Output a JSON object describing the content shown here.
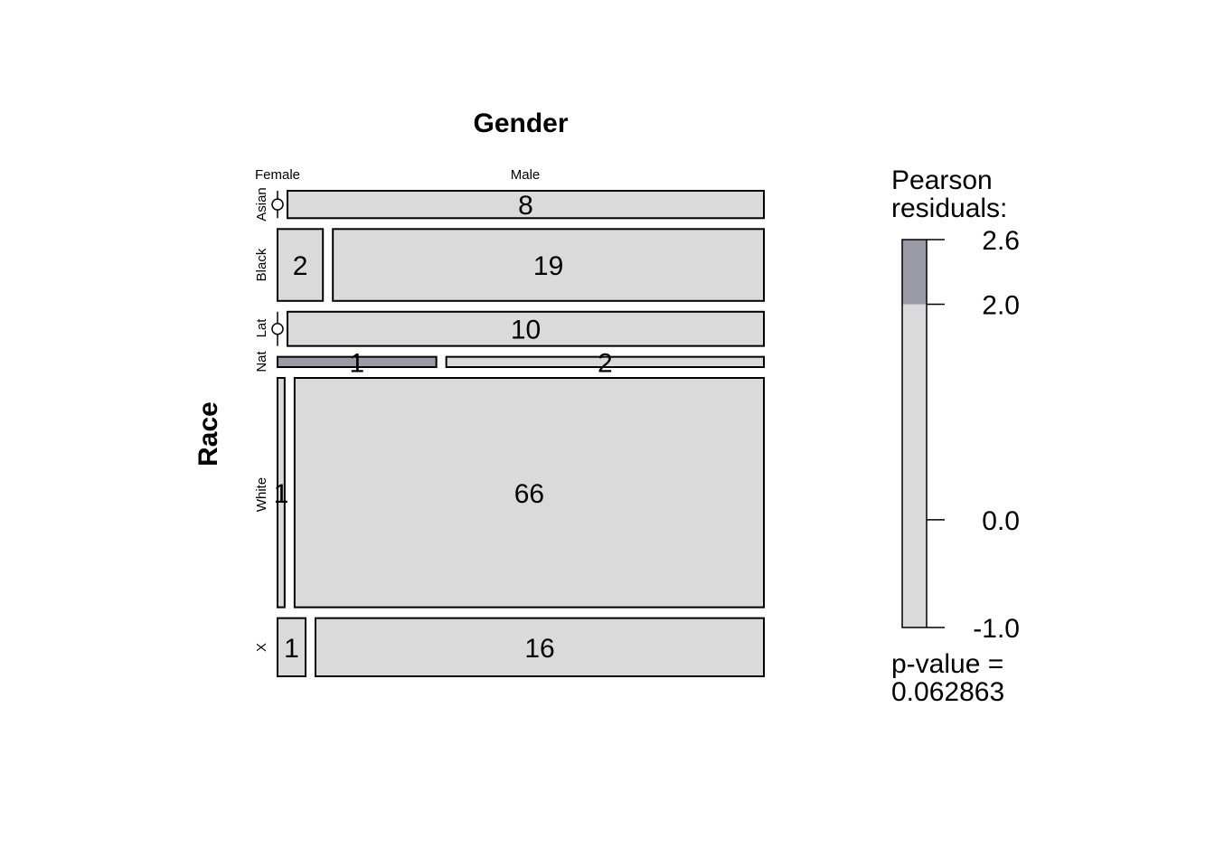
{
  "chart_data": {
    "type": "mosaic",
    "title": "Gender",
    "xlabel": "Gender",
    "ylabel": "Race",
    "columns": [
      "Female",
      "Male"
    ],
    "rows": [
      "Asian",
      "Black",
      "Lat",
      "Nat",
      "White",
      "X"
    ],
    "counts": [
      [
        0,
        8
      ],
      [
        2,
        19
      ],
      [
        0,
        10
      ],
      [
        1,
        2
      ],
      [
        1,
        66
      ],
      [
        1,
        16
      ]
    ],
    "shaded_cells": [
      [
        3,
        0
      ]
    ],
    "legend": {
      "title_line1": "Pearson",
      "title_line2": "residuals:",
      "ticks": [
        "2.6",
        "2.0",
        "0.0",
        "-1.0"
      ],
      "tick_values": [
        2.6,
        2.0,
        0.0,
        -1.0
      ],
      "range": [
        -1.0,
        2.6
      ],
      "shade_threshold": 2.0,
      "pvalue_line1": "p-value =",
      "pvalue_line2": "0.062863"
    },
    "colors": {
      "neutral_fill": "#dadada",
      "shaded_fill": "#9a9ba6",
      "stroke": "#000000"
    }
  }
}
